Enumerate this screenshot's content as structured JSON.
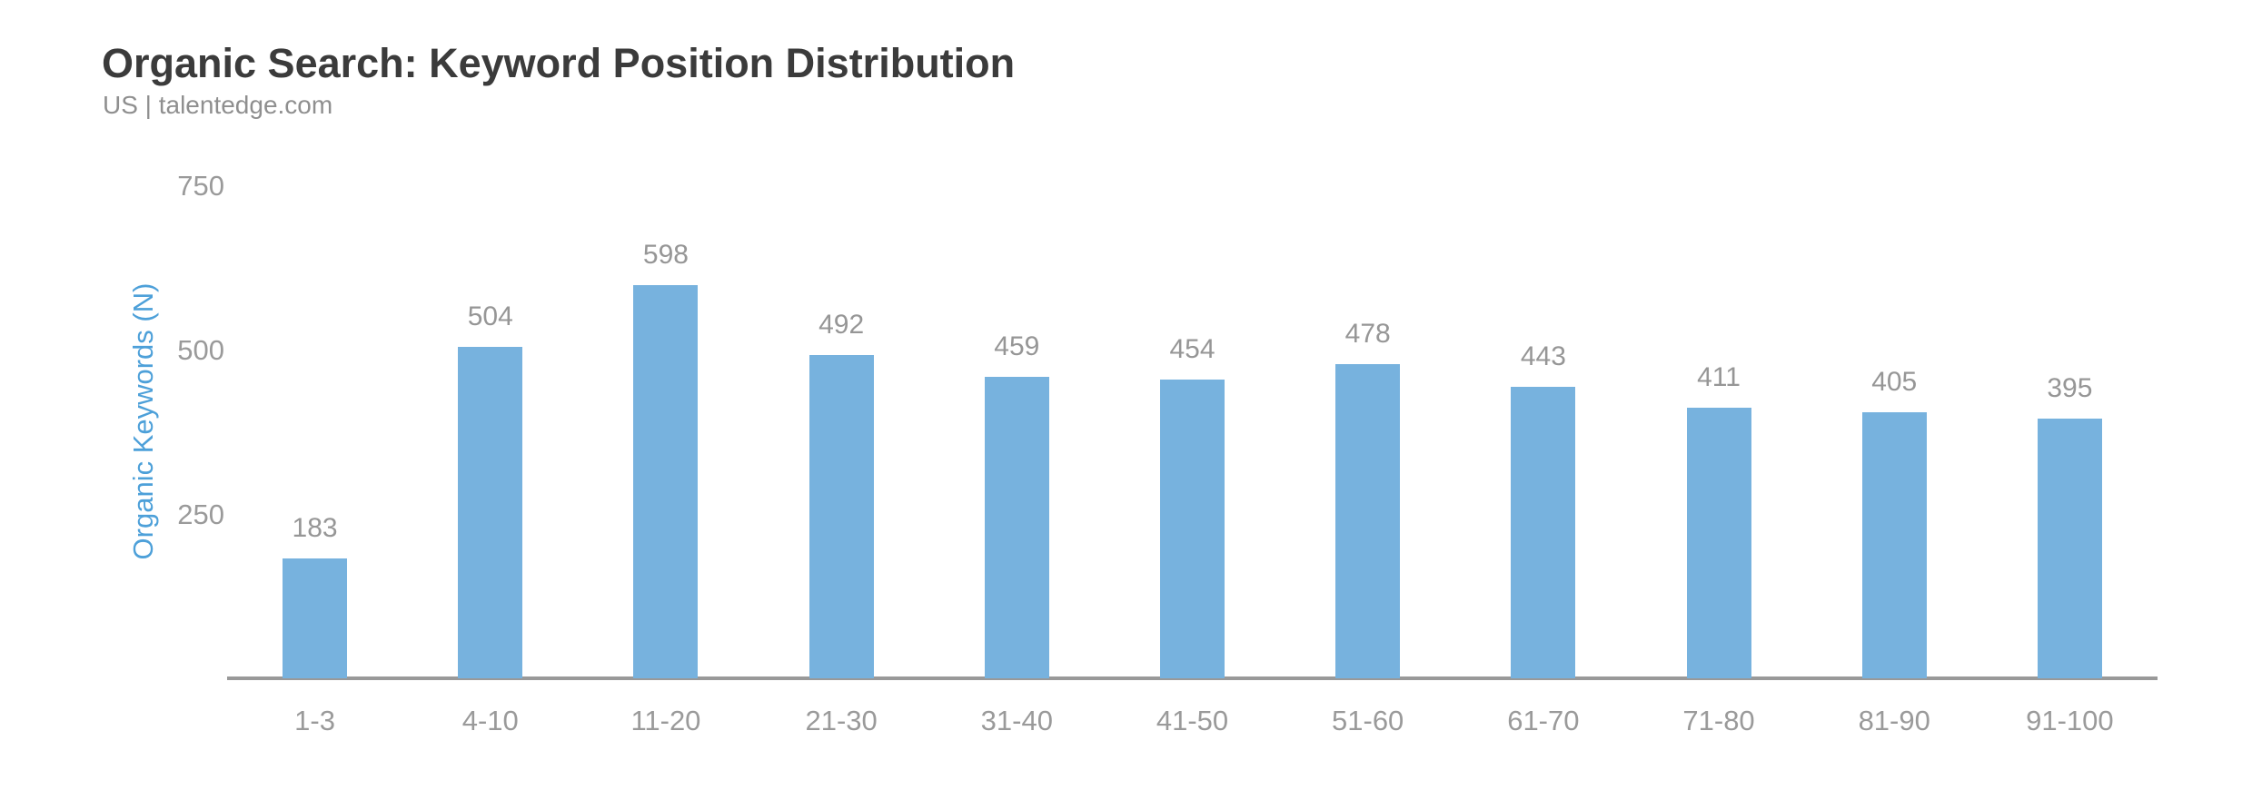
{
  "chart_data": {
    "type": "bar",
    "title": "Organic Search: Keyword Position Distribution",
    "subtitle": "US | talentedge.com",
    "ylabel": "Organic Keywords (N)",
    "xlabel": "",
    "categories": [
      "1-3",
      "4-10",
      "11-20",
      "21-30",
      "31-40",
      "41-50",
      "51-60",
      "61-70",
      "71-80",
      "81-90",
      "91-100"
    ],
    "values": [
      183,
      504,
      598,
      492,
      459,
      454,
      478,
      443,
      411,
      405,
      395
    ],
    "yticks": [
      250,
      500,
      750
    ],
    "ylim": [
      0,
      750
    ],
    "grid": "off",
    "legend": "none",
    "value_labels": "above-bars",
    "colors": {
      "bar": "#77b2de",
      "y_axis_label": "#4da0d9",
      "title": "#3b3b3b",
      "subtitle": "#8f8f8f",
      "tick_label": "#9a9a9a",
      "value_label": "#969696",
      "axis_line": "#999999",
      "background": "#ffffff"
    }
  }
}
